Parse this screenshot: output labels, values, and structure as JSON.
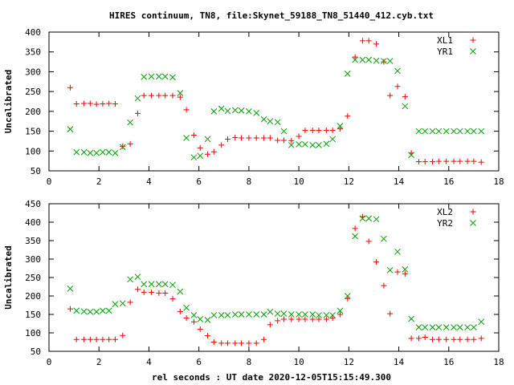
{
  "title": "HIRES continuum, TN8, file:Skynet_59188_TN8_51440_412.cyb.txt",
  "xlabel": "rel seconds : UT date 2020-12-05T15:15:49.300",
  "chart_data": [
    {
      "type": "scatter",
      "ylabel": "Uncalibrated",
      "xlim": [
        0,
        18
      ],
      "ylim": [
        50,
        400
      ],
      "xticks": [
        0,
        2,
        4,
        6,
        8,
        10,
        12,
        14,
        16,
        18
      ],
      "yticks": [
        50,
        100,
        150,
        200,
        250,
        300,
        350,
        400
      ],
      "legend": "top-right",
      "series": [
        {
          "name": "XL1",
          "marker": "plus",
          "color": "#ff0000",
          "x": [
            0.85,
            1.1,
            1.4,
            1.65,
            1.9,
            2.15,
            2.4,
            2.65,
            2.95,
            3.25,
            3.55,
            3.8,
            4.1,
            4.4,
            4.65,
            4.95,
            5.25,
            5.5,
            5.8,
            6.05,
            6.35,
            6.6,
            6.9,
            7.15,
            7.45,
            7.7,
            8.0,
            8.3,
            8.6,
            8.85,
            9.15,
            9.4,
            9.7,
            10.0,
            10.25,
            10.55,
            10.8,
            11.1,
            11.35,
            11.65,
            11.95,
            12.25,
            12.55,
            12.8,
            13.1,
            13.4,
            13.65,
            13.95,
            14.25,
            14.5,
            14.8,
            15.05,
            15.35,
            15.6,
            15.9,
            16.2,
            16.45,
            16.75,
            17.0,
            17.3
          ],
          "y": [
            260,
            219,
            220,
            220,
            218,
            219,
            220,
            219,
            112,
            118,
            195,
            240,
            240,
            240,
            240,
            240,
            236,
            204,
            140,
            108,
            92,
            98,
            115,
            130,
            134,
            133,
            133,
            133,
            133,
            133,
            127,
            127,
            126,
            137,
            152,
            152,
            152,
            152,
            152,
            156,
            188,
            337,
            378,
            378,
            370,
            325,
            240,
            263,
            237,
            95,
            73,
            73,
            73,
            74,
            74,
            74,
            74,
            74,
            74,
            72
          ]
        },
        {
          "name": "YR1",
          "marker": "cross",
          "color": "#00a000",
          "x": [
            0.85,
            1.1,
            1.4,
            1.65,
            1.9,
            2.15,
            2.4,
            2.65,
            2.95,
            3.25,
            3.55,
            3.8,
            4.1,
            4.4,
            4.65,
            4.95,
            5.25,
            5.5,
            5.8,
            6.05,
            6.35,
            6.6,
            6.9,
            7.15,
            7.45,
            7.7,
            8.0,
            8.3,
            8.6,
            8.85,
            9.15,
            9.4,
            9.7,
            10.0,
            10.25,
            10.55,
            10.8,
            11.1,
            11.35,
            11.65,
            11.95,
            12.25,
            12.55,
            12.8,
            13.1,
            13.4,
            13.65,
            13.95,
            14.25,
            14.5,
            14.8,
            15.05,
            15.35,
            15.6,
            15.9,
            16.2,
            16.45,
            16.75,
            17.0,
            17.3
          ],
          "y": [
            155,
            97,
            97,
            95,
            95,
            97,
            97,
            95,
            110,
            172,
            233,
            287,
            288,
            288,
            288,
            286,
            246,
            133,
            84,
            88,
            130,
            200,
            207,
            201,
            203,
            202,
            200,
            196,
            180,
            175,
            173,
            150,
            115,
            117,
            117,
            115,
            115,
            118,
            130,
            163,
            295,
            330,
            330,
            330,
            328,
            327,
            327,
            302,
            213,
            90,
            150,
            150,
            150,
            150,
            150,
            150,
            150,
            150,
            150,
            150
          ]
        }
      ]
    },
    {
      "type": "scatter",
      "ylabel": "Uncalibrated",
      "xlabel": "rel seconds : UT date 2020-12-05T15:15:49.300",
      "xlim": [
        0,
        18
      ],
      "ylim": [
        50,
        450
      ],
      "xticks": [
        0,
        2,
        4,
        6,
        8,
        10,
        12,
        14,
        16,
        18
      ],
      "yticks": [
        50,
        100,
        150,
        200,
        250,
        300,
        350,
        400,
        450
      ],
      "legend": "top-right",
      "series": [
        {
          "name": "XL2",
          "marker": "plus",
          "color": "#ff0000",
          "x": [
            0.85,
            1.1,
            1.4,
            1.65,
            1.9,
            2.15,
            2.4,
            2.65,
            2.95,
            3.25,
            3.55,
            3.8,
            4.1,
            4.4,
            4.65,
            4.95,
            5.25,
            5.5,
            5.8,
            6.05,
            6.35,
            6.6,
            6.9,
            7.15,
            7.45,
            7.7,
            8.0,
            8.3,
            8.6,
            8.85,
            9.15,
            9.4,
            9.7,
            10.0,
            10.25,
            10.55,
            10.8,
            11.1,
            11.35,
            11.65,
            11.95,
            12.25,
            12.55,
            12.8,
            13.1,
            13.4,
            13.65,
            13.95,
            14.25,
            14.5,
            14.8,
            15.05,
            15.35,
            15.6,
            15.9,
            16.2,
            16.45,
            16.75,
            17.0,
            17.3
          ],
          "y": [
            165,
            82,
            82,
            82,
            82,
            82,
            82,
            82,
            93,
            183,
            218,
            210,
            210,
            208,
            208,
            192,
            158,
            140,
            130,
            110,
            92,
            75,
            72,
            72,
            72,
            72,
            72,
            72,
            82,
            122,
            133,
            137,
            137,
            137,
            137,
            137,
            137,
            137,
            140,
            150,
            193,
            383,
            415,
            348,
            292,
            228,
            152,
            265,
            260,
            85,
            85,
            88,
            82,
            82,
            82,
            82,
            82,
            82,
            82,
            85
          ]
        },
        {
          "name": "YR2",
          "marker": "cross",
          "color": "#00a000",
          "x": [
            0.85,
            1.1,
            1.4,
            1.65,
            1.9,
            2.15,
            2.4,
            2.65,
            2.95,
            3.25,
            3.55,
            3.8,
            4.1,
            4.4,
            4.65,
            4.95,
            5.25,
            5.5,
            5.8,
            6.05,
            6.35,
            6.6,
            6.9,
            7.15,
            7.45,
            7.7,
            8.0,
            8.3,
            8.6,
            8.85,
            9.15,
            9.4,
            9.7,
            10.0,
            10.25,
            10.55,
            10.8,
            11.1,
            11.35,
            11.65,
            11.95,
            12.25,
            12.55,
            12.8,
            13.1,
            13.4,
            13.65,
            13.95,
            14.25,
            14.5,
            14.8,
            15.05,
            15.35,
            15.6,
            15.9,
            16.2,
            16.45,
            16.75,
            17.0,
            17.3
          ],
          "y": [
            220,
            160,
            158,
            157,
            157,
            160,
            160,
            178,
            180,
            245,
            252,
            232,
            232,
            232,
            232,
            230,
            212,
            168,
            148,
            137,
            135,
            148,
            148,
            148,
            150,
            150,
            150,
            150,
            150,
            157,
            152,
            152,
            150,
            150,
            150,
            150,
            148,
            148,
            148,
            160,
            200,
            362,
            410,
            410,
            408,
            355,
            270,
            320,
            272,
            138,
            115,
            115,
            115,
            115,
            115,
            115,
            115,
            115,
            115,
            130
          ]
        }
      ]
    }
  ]
}
